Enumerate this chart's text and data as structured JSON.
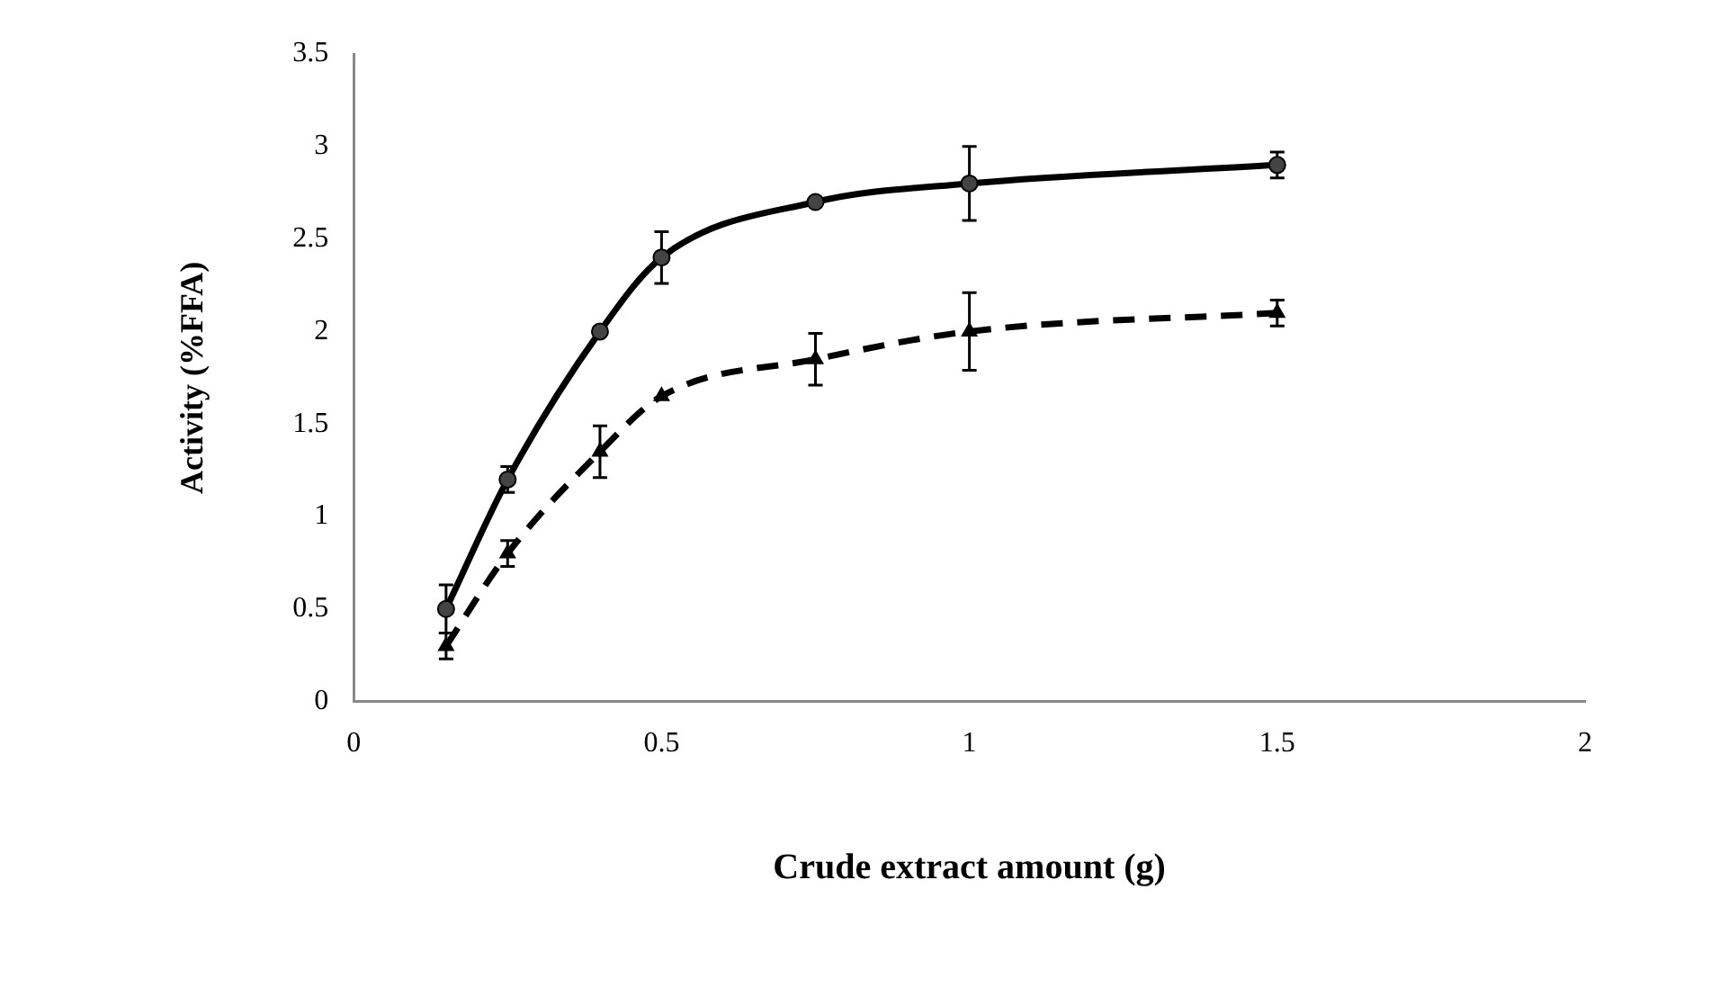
{
  "chart_data": {
    "type": "line",
    "xlabel": "Crude extract amount (g)",
    "ylabel": "Activity (%FFA)",
    "x": [
      0.15,
      0.25,
      0.4,
      0.5,
      0.75,
      1,
      1.5
    ],
    "series": [
      {
        "color": "#000000",
        "marker": "circle",
        "line_style": "solid",
        "values": [
          0.5,
          1.2,
          2.0,
          2.4,
          2.7,
          2.8,
          2.9
        ],
        "errors": [
          0.13,
          0.07,
          null,
          0.14,
          null,
          0.2,
          0.07
        ]
      },
      {
        "color": "#000000",
        "marker": "triangle",
        "line_style": "dashed",
        "values": [
          0.3,
          0.8,
          1.35,
          1.65,
          1.85,
          2.0,
          2.1
        ],
        "errors": [
          0.07,
          0.07,
          0.14,
          null,
          0.14,
          0.21,
          0.07
        ]
      }
    ],
    "xlim": [
      0,
      2
    ],
    "xticks": [
      0,
      0.5,
      1,
      1.5,
      2
    ],
    "ylim": [
      0,
      3.5
    ],
    "yticks": [
      0,
      0.5,
      1,
      1.5,
      2,
      2.5,
      3,
      3.5
    ],
    "grid": false,
    "legend": false
  }
}
